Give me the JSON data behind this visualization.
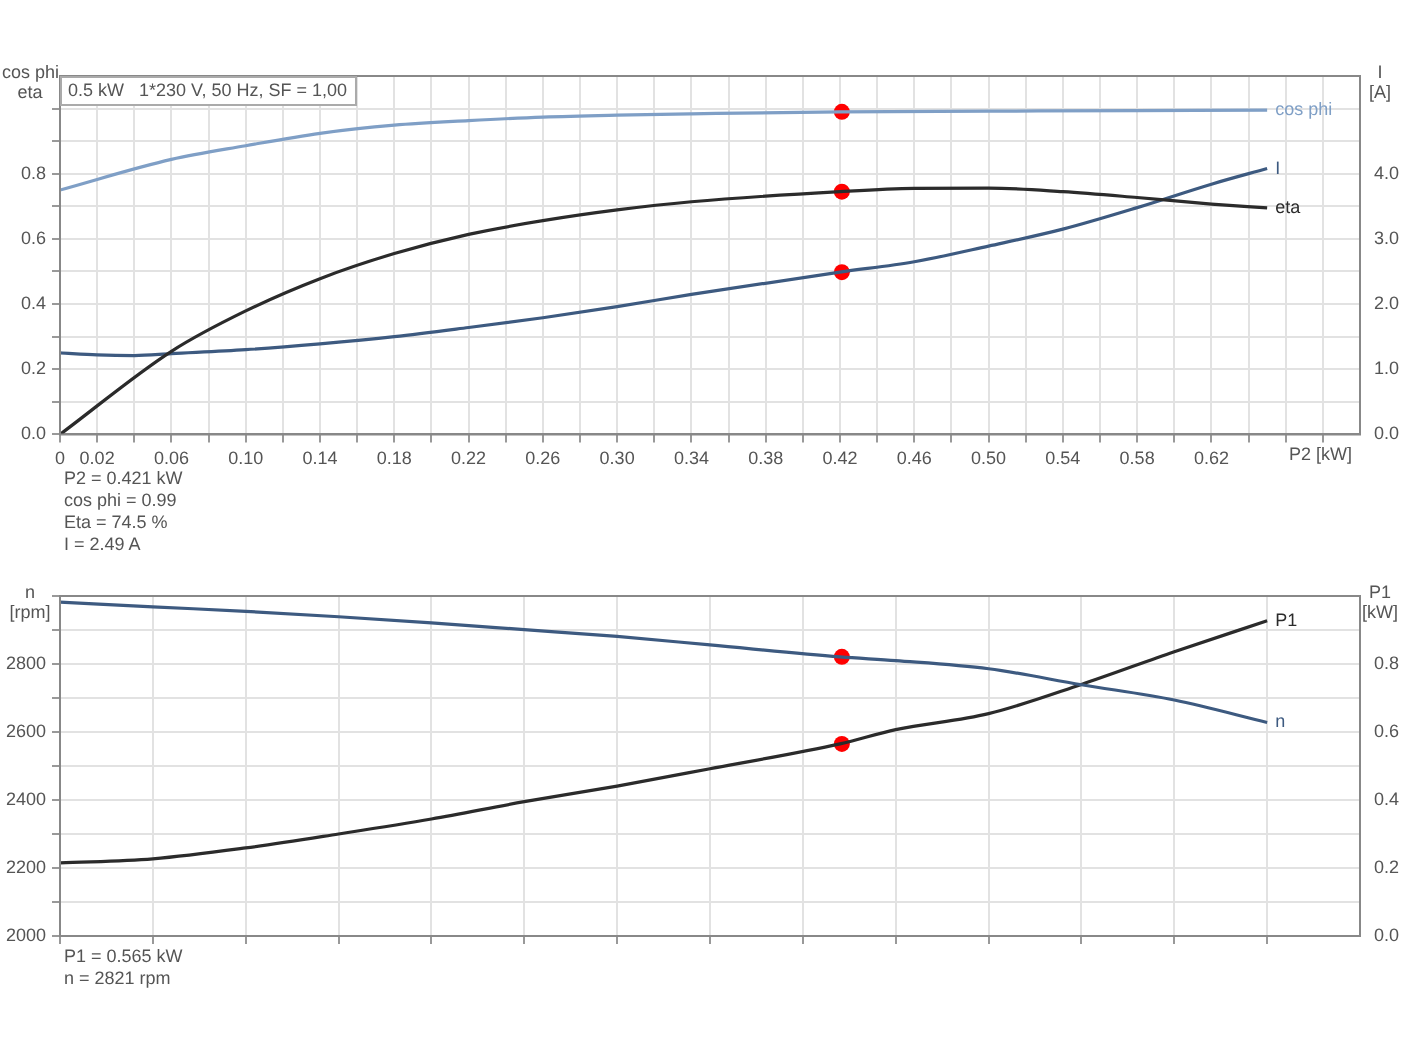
{
  "chart_data": [
    {
      "type": "line",
      "title": "0.5 kW   1*230 V, 50 Hz, SF = 1,00",
      "xlabel": "P2 [kW]",
      "ylabel": "cos phi\neta",
      "y2label": "I\n[A]",
      "xlim": [
        0,
        0.7
      ],
      "ylim": [
        0,
        1.1
      ],
      "y2lim": [
        0,
        5.5
      ],
      "xticks": [
        {
          "value": 0,
          "label": "0"
        },
        0.02,
        {
          "value": 0.04,
          "label": null
        },
        0.06,
        {
          "value": 0.08,
          "label": null
        },
        {
          "value": 0.1,
          "label": "0.10"
        },
        {
          "value": 0.12,
          "label": null
        },
        0.14,
        {
          "value": 0.16,
          "label": null
        },
        0.18,
        {
          "value": 0.2,
          "label": null
        },
        0.22,
        {
          "value": 0.24,
          "label": null
        },
        0.26,
        {
          "value": 0.28,
          "label": null
        },
        {
          "value": 0.3,
          "label": "0.30"
        },
        {
          "value": 0.32,
          "label": null
        },
        0.34,
        {
          "value": 0.36,
          "label": null
        },
        0.38,
        {
          "value": 0.4,
          "label": null
        },
        0.42,
        {
          "value": 0.44,
          "label": null
        },
        0.46,
        {
          "value": 0.48,
          "label": null
        },
        {
          "value": 0.5,
          "label": "0.50"
        },
        {
          "value": 0.52,
          "label": null
        },
        0.54,
        {
          "value": 0.56,
          "label": null
        },
        0.58,
        {
          "value": 0.6,
          "label": null
        },
        0.62,
        {
          "value": 0.64,
          "label": null
        },
        {
          "value": 0.66,
          "label": null
        },
        {
          "value": 0.68,
          "label": null
        }
      ],
      "yticks": [
        {
          "value": 0,
          "label": "0.0"
        },
        {
          "value": 0.1,
          "label": null
        },
        0.2,
        {
          "value": 0.3,
          "label": null
        },
        0.4,
        {
          "value": 0.5,
          "label": null
        },
        0.6,
        {
          "value": 0.7,
          "label": null
        },
        0.8,
        {
          "value": 0.9,
          "label": null
        },
        {
          "value": 1,
          "label": null
        }
      ],
      "y2ticks": [
        {
          "value": 0,
          "label": "0.0"
        },
        {
          "value": 1,
          "label": "1.0"
        },
        {
          "value": 2,
          "label": "2.0"
        },
        {
          "value": 3,
          "label": "3.0"
        },
        {
          "value": 4,
          "label": "4.0"
        },
        {
          "value": 5,
          "label": null
        }
      ],
      "grid": true,
      "line_style": "solid",
      "series": [
        {
          "name": "cos phi",
          "type": "line",
          "marker": "none",
          "color": "#7f9fc6",
          "x": [
            0,
            0.06,
            0.1,
            0.14,
            0.18,
            0.22,
            0.26,
            0.3,
            0.34,
            0.42,
            0.5,
            0.58,
            0.65
          ],
          "values": [
            0.75,
            0.844,
            0.886,
            0.924,
            0.949,
            0.963,
            0.974,
            0.98,
            0.984,
            0.99,
            0.992,
            0.994,
            0.995
          ]
        },
        {
          "name": "eta",
          "type": "line",
          "marker": "none",
          "color": "#2b2b2b",
          "x": [
            0,
            0.06,
            0.1,
            0.14,
            0.18,
            0.22,
            0.26,
            0.3,
            0.34,
            0.42,
            0.46,
            0.5,
            0.54,
            0.58,
            0.62,
            0.65
          ],
          "values": [
            0,
            0.255,
            0.379,
            0.478,
            0.555,
            0.614,
            0.656,
            0.689,
            0.714,
            0.745,
            0.755,
            0.756,
            0.745,
            0.727,
            0.707,
            0.695
          ]
        },
        {
          "name": "I",
          "type": "line",
          "marker": "none",
          "axis": "y2",
          "color": "#3d5a80",
          "x": [
            0,
            0.02,
            0.04,
            0.06,
            0.1,
            0.14,
            0.18,
            0.22,
            0.26,
            0.3,
            0.34,
            0.42,
            0.46,
            0.5,
            0.54,
            0.58,
            0.62,
            0.65
          ],
          "values": [
            1.25,
            1.22,
            1.21,
            1.24,
            1.3,
            1.39,
            1.5,
            1.64,
            1.79,
            1.96,
            2.15,
            2.49,
            2.65,
            2.89,
            3.15,
            3.48,
            3.84,
            4.08
          ]
        },
        {
          "type": "scatter",
          "marker": "circle",
          "color": "#ff0000",
          "x": [
            0.421,
            0.421
          ],
          "values": [
            0.99,
            0.745
          ]
        },
        {
          "type": "scatter",
          "marker": "circle",
          "axis": "y2",
          "color": "#ff0000",
          "x": [
            0.421
          ],
          "values": [
            2.49
          ]
        }
      ],
      "annotations": [
        "P2 = 0.421 kW",
        "cos phi = 0.99",
        "Eta = 74.5 %",
        "I = 2.49 A"
      ]
    },
    {
      "type": "line",
      "ylabel": "n\n[rpm]",
      "y2label": "P1\n[kW]",
      "tick_labels": "y",
      "xlim": [
        0,
        0.7
      ],
      "ylim": [
        2000,
        3000
      ],
      "y2lim": [
        0,
        1
      ],
      "xticks": [
        {
          "value": 0,
          "label": null
        },
        {
          "value": 0.05,
          "label": null
        },
        {
          "value": 0.1,
          "label": null
        },
        {
          "value": 0.15,
          "label": null
        },
        {
          "value": 0.2,
          "label": null
        },
        {
          "value": 0.25,
          "label": null
        },
        {
          "value": 0.3,
          "label": null
        },
        {
          "value": 0.35,
          "label": null
        },
        {
          "value": 0.4,
          "label": null
        },
        {
          "value": 0.45,
          "label": null
        },
        {
          "value": 0.5,
          "label": null
        },
        {
          "value": 0.55,
          "label": null
        },
        {
          "value": 0.6,
          "label": null
        },
        {
          "value": 0.65,
          "label": null
        }
      ],
      "yticks": [
        2000,
        {
          "value": 2100,
          "label": null
        },
        2200,
        {
          "value": 2300,
          "label": null
        },
        2400,
        {
          "value": 2500,
          "label": null
        },
        2600,
        {
          "value": 2700,
          "label": null
        },
        2800,
        {
          "value": 2900,
          "label": null
        },
        {
          "value": 3000,
          "label": null
        }
      ],
      "y2ticks": [
        {
          "value": 0,
          "label": "0.0"
        },
        {
          "value": 0.1,
          "label": null
        },
        0.2,
        {
          "value": 0.3,
          "label": null
        },
        0.4,
        {
          "value": 0.5,
          "label": null
        },
        0.6,
        {
          "value": 0.7,
          "label": null
        },
        0.8,
        {
          "value": 0.9,
          "label": null
        },
        {
          "value": 1,
          "label": null
        }
      ],
      "grid": true,
      "line_style": "solid",
      "series": [
        {
          "name": "n",
          "type": "line",
          "marker": "none",
          "color": "#3d5a80",
          "x": [
            0,
            0.05,
            0.1,
            0.15,
            0.2,
            0.25,
            0.3,
            0.35,
            0.42,
            0.45,
            0.5,
            0.55,
            0.6,
            0.65
          ],
          "values": [
            2982,
            2968,
            2955,
            2939,
            2921,
            2901,
            2881,
            2856,
            2821,
            2810,
            2786,
            2739,
            2694,
            2628
          ]
        },
        {
          "name": "P1",
          "type": "line",
          "marker": "none",
          "axis": "y2",
          "color": "#2b2b2b",
          "x": [
            0,
            0.05,
            0.1,
            0.15,
            0.2,
            0.25,
            0.3,
            0.35,
            0.42,
            0.45,
            0.5,
            0.55,
            0.6,
            0.65
          ],
          "values": [
            0.215,
            0.227,
            0.259,
            0.3,
            0.344,
            0.395,
            0.441,
            0.492,
            0.565,
            0.607,
            0.654,
            0.74,
            0.836,
            0.927
          ]
        },
        {
          "type": "scatter",
          "marker": "circle",
          "color": "#ff0000",
          "x": [
            0.421
          ],
          "values": [
            2821
          ]
        },
        {
          "type": "scatter",
          "marker": "circle",
          "axis": "y2",
          "color": "#ff0000",
          "x": [
            0.421
          ],
          "values": [
            0.565
          ]
        }
      ],
      "annotations": [
        "P1 = 0.565 kW",
        "n = 2821 rpm"
      ]
    }
  ]
}
